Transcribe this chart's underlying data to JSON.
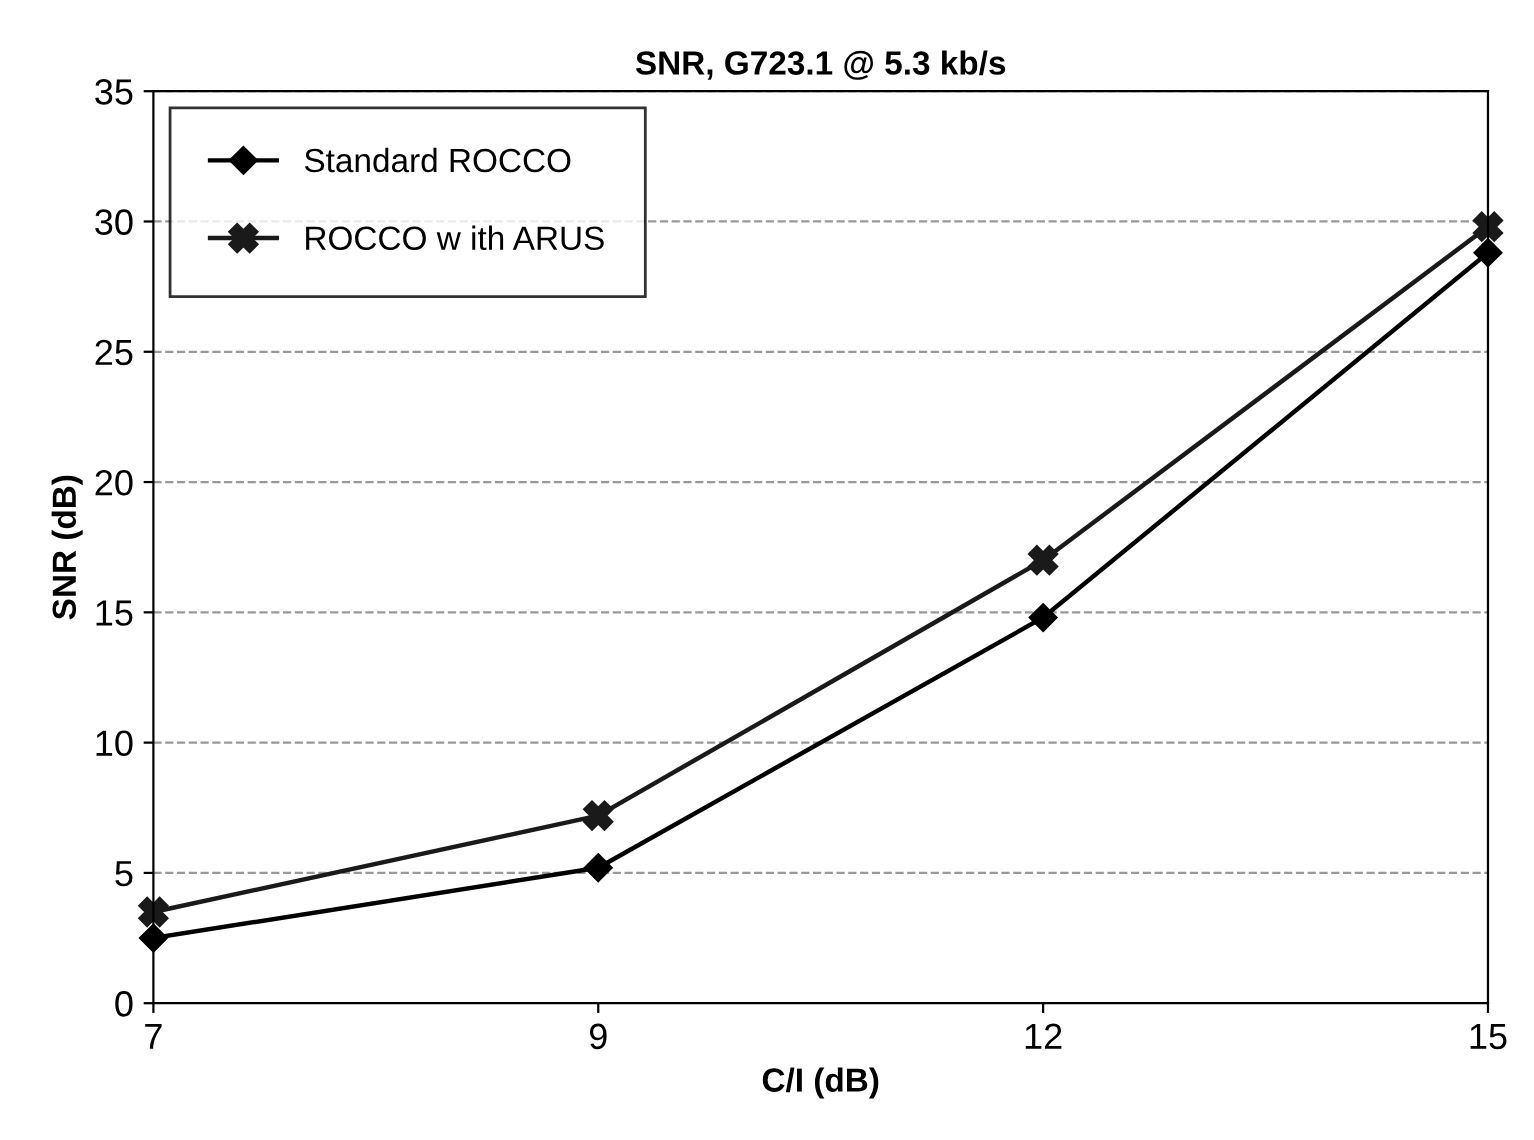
{
  "chart_data": {
    "type": "line",
    "title": "SNR, G723.1 @ 5.3 kb/s",
    "xlabel": "C/I (dB)",
    "ylabel": "SNR (dB)",
    "categories": [
      "7",
      "9",
      "12",
      "15"
    ],
    "series": [
      {
        "name": "Standard ROCCO",
        "color": "#000000",
        "marker": "diamond",
        "values": [
          2.5,
          5.2,
          14.8,
          28.8
        ]
      },
      {
        "name": "ROCCO w ith ARUS",
        "color": "#1a1a1a",
        "marker": "cross",
        "values": [
          3.5,
          7.2,
          17.0,
          29.8
        ]
      }
    ],
    "ylim": [
      0,
      35
    ],
    "yticks": [
      0,
      5,
      10,
      15,
      20,
      25,
      30,
      35
    ],
    "grid": "y",
    "legend": "top left",
    "line_style": "solid"
  }
}
